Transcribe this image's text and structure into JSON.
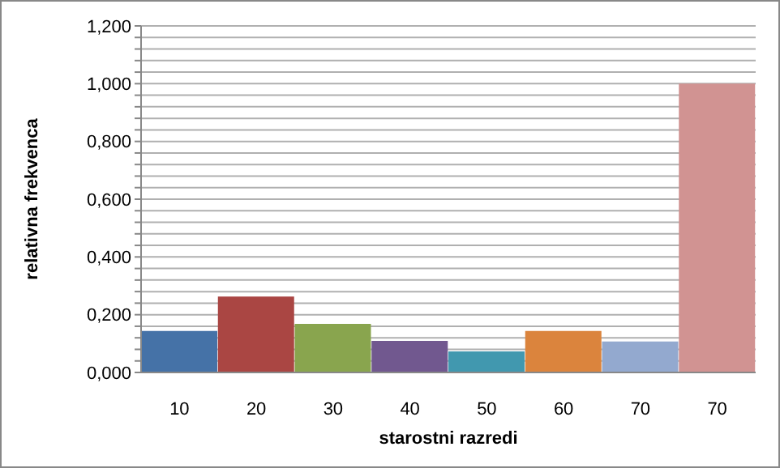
{
  "chart_data": {
    "type": "bar",
    "xlabel": "starostni razredi",
    "ylabel": "relativna frekvenca",
    "categories": [
      "10",
      "20",
      "30",
      "40",
      "50",
      "60",
      "70",
      "70"
    ],
    "values": [
      0.144,
      0.263,
      0.168,
      0.109,
      0.073,
      0.144,
      0.107,
      1.0
    ],
    "colors": [
      "#4572a7",
      "#aa4643",
      "#89a54e",
      "#71588f",
      "#4198af",
      "#db843d",
      "#93a9cf",
      "#d19392"
    ],
    "ylim": [
      0,
      1.2
    ],
    "yticks": [
      {
        "value": 0,
        "label": "0,000"
      },
      {
        "value": 0.04,
        "label": null
      },
      {
        "value": 0.08,
        "label": null
      },
      {
        "value": 0.12,
        "label": null
      },
      {
        "value": 0.16,
        "label": null
      },
      {
        "value": 0.2,
        "label": "0,200"
      },
      {
        "value": 0.24,
        "label": null
      },
      {
        "value": 0.28,
        "label": null
      },
      {
        "value": 0.32,
        "label": null
      },
      {
        "value": 0.36,
        "label": null
      },
      {
        "value": 0.4,
        "label": "0,400"
      },
      {
        "value": 0.44,
        "label": null
      },
      {
        "value": 0.48,
        "label": null
      },
      {
        "value": 0.52,
        "label": null
      },
      {
        "value": 0.56,
        "label": null
      },
      {
        "value": 0.6,
        "label": "0,600"
      },
      {
        "value": 0.64,
        "label": null
      },
      {
        "value": 0.68,
        "label": null
      },
      {
        "value": 0.72,
        "label": null
      },
      {
        "value": 0.76,
        "label": null
      },
      {
        "value": 0.8,
        "label": "0,800"
      },
      {
        "value": 0.84,
        "label": null
      },
      {
        "value": 0.88,
        "label": null
      },
      {
        "value": 0.92,
        "label": null
      },
      {
        "value": 0.96,
        "label": null
      },
      {
        "value": 1.0,
        "label": "1,000"
      },
      {
        "value": 1.04,
        "label": null
      },
      {
        "value": 1.08,
        "label": null
      },
      {
        "value": 1.12,
        "label": null
      },
      {
        "value": 1.16,
        "label": null
      },
      {
        "value": 1.2,
        "label": "1,200"
      }
    ],
    "grid": "y"
  }
}
